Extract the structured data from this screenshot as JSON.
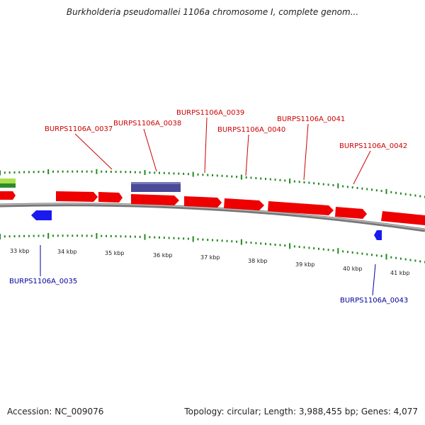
{
  "title": "Burkholderia pseudomallei 1106a chromosome I, complete genom...",
  "footer": {
    "accession": "Accession: NC_009076",
    "stats": "Topology: circular; Length: 3,988,455 bp; Genes: 4,077"
  },
  "colors": {
    "forward_gene": "#ee0000",
    "reverse_gene": "#1a1aee",
    "rna_gene": "#4a4a99",
    "backbone": "#888888",
    "ticks": "#228822",
    "label_red": "#cc0000",
    "label_blue": "#000099"
  },
  "scale_labels": [
    "33 kbp",
    "34 kbp",
    "35 kbp",
    "36 kbp",
    "37 kbp",
    "38 kbp",
    "39 kbp",
    "40 kbp",
    "41 kbp"
  ],
  "gene_labels_forward": [
    "BURPS1106A_0037",
    "BURPS1106A_0038",
    "BURPS1106A_0039",
    "BURPS1106A_0040",
    "BURPS1106A_0041",
    "BURPS1106A_0042"
  ],
  "gene_labels_reverse": [
    "BURPS1106A_0035",
    "BURPS1106A_0043"
  ]
}
